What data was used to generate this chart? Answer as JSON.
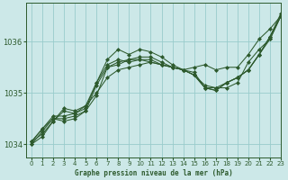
{
  "title": "Graphe pression niveau de la mer (hPa)",
  "bg_color": "#cce8e8",
  "grid_color": "#99cccc",
  "line_color": "#2d5a2d",
  "xlim": [
    -0.5,
    23
  ],
  "ylim": [
    1033.75,
    1036.75
  ],
  "yticks": [
    1034,
    1035,
    1036
  ],
  "xticks": [
    0,
    1,
    2,
    3,
    4,
    5,
    6,
    7,
    8,
    9,
    10,
    11,
    12,
    13,
    14,
    15,
    16,
    17,
    18,
    19,
    20,
    21,
    22,
    23
  ],
  "series": [
    [
      1034.05,
      1034.2,
      1034.45,
      1034.7,
      1034.65,
      1034.75,
      1035.0,
      1035.3,
      1035.45,
      1035.5,
      1035.55,
      1035.6,
      1035.55,
      1035.5,
      1035.45,
      1035.5,
      1035.55,
      1035.45,
      1035.5,
      1035.5,
      1035.75,
      1036.05,
      1036.25,
      1036.5
    ],
    [
      1034.05,
      1034.3,
      1034.55,
      1034.55,
      1034.6,
      1034.7,
      1035.2,
      1035.55,
      1035.65,
      1035.6,
      1035.65,
      1035.6,
      1035.55,
      1035.5,
      1035.45,
      1035.35,
      1035.15,
      1035.1,
      1035.2,
      1035.3,
      1035.45,
      1035.75,
      1036.1,
      1036.55
    ],
    [
      1034.05,
      1034.3,
      1034.5,
      1034.5,
      1034.55,
      1034.65,
      1035.15,
      1035.5,
      1035.6,
      1035.65,
      1035.65,
      1035.65,
      1035.55,
      1035.5,
      1035.45,
      1035.35,
      1035.1,
      1035.05,
      1035.2,
      1035.3,
      1035.45,
      1035.75,
      1036.05,
      1036.5
    ],
    [
      1034.0,
      1034.25,
      1034.5,
      1034.45,
      1034.5,
      1034.65,
      1034.95,
      1035.5,
      1035.55,
      1035.65,
      1035.7,
      1035.7,
      1035.6,
      1035.5,
      1035.45,
      1035.35,
      1035.1,
      1035.05,
      1035.2,
      1035.3,
      1035.45,
      1035.75,
      1036.1,
      1036.5
    ],
    [
      1034.0,
      1034.15,
      1034.45,
      1034.65,
      1034.6,
      1034.75,
      1035.2,
      1035.65,
      1035.85,
      1035.75,
      1035.85,
      1035.8,
      1035.7,
      1035.55,
      1035.45,
      1035.4,
      1035.1,
      1035.1,
      1035.1,
      1035.2,
      1035.6,
      1035.85,
      1036.05,
      1036.5
    ]
  ]
}
